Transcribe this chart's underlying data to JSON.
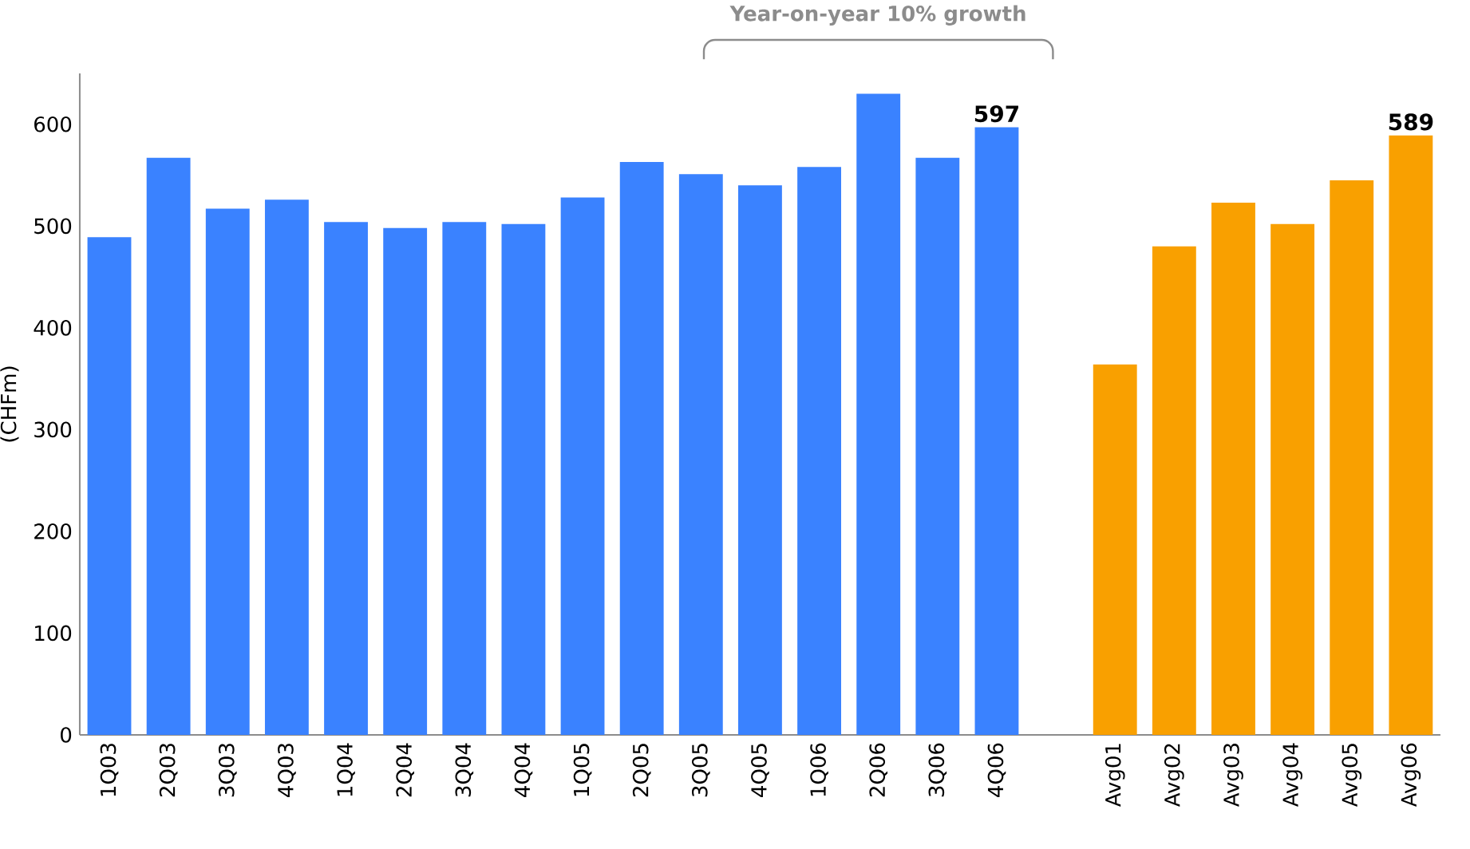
{
  "chart_data": {
    "type": "bar",
    "ylabel": "(CHFm)",
    "annotations": [
      "Year-on-year 10% growth"
    ],
    "categories": [
      "1Q03",
      "2Q03",
      "3Q03",
      "4Q03",
      "1Q04",
      "2Q04",
      "3Q04",
      "4Q04",
      "1Q05",
      "2Q05",
      "3Q05",
      "4Q05",
      "1Q06",
      "2Q06",
      "3Q06",
      "4Q06",
      null,
      "Avg01",
      "Avg02",
      "Avg03",
      "Avg04",
      "Avg05",
      "Avg06"
    ],
    "values": [
      489,
      567,
      517,
      526,
      504,
      498,
      504,
      502,
      528,
      563,
      551,
      540,
      558,
      630,
      567,
      597,
      null,
      364,
      480,
      523,
      502,
      545,
      589
    ],
    "colors": [
      "#3a82ff",
      "#3a82ff",
      "#3a82ff",
      "#3a82ff",
      "#3a82ff",
      "#3a82ff",
      "#3a82ff",
      "#3a82ff",
      "#3a82ff",
      "#3a82ff",
      "#3a82ff",
      "#3a82ff",
      "#3a82ff",
      "#3a82ff",
      "#3a82ff",
      "#3a82ff",
      null,
      "#f9a000",
      "#f9a000",
      "#f9a000",
      "#f9a000",
      "#f9a000",
      "#f9a000"
    ],
    "value_labels": [
      null,
      null,
      null,
      null,
      null,
      null,
      null,
      null,
      null,
      null,
      null,
      null,
      null,
      null,
      null,
      "597",
      null,
      null,
      null,
      null,
      null,
      null,
      "589"
    ],
    "ylim": [
      0,
      650
    ],
    "yticks": [
      0,
      100,
      200,
      300,
      400,
      500,
      600
    ]
  }
}
